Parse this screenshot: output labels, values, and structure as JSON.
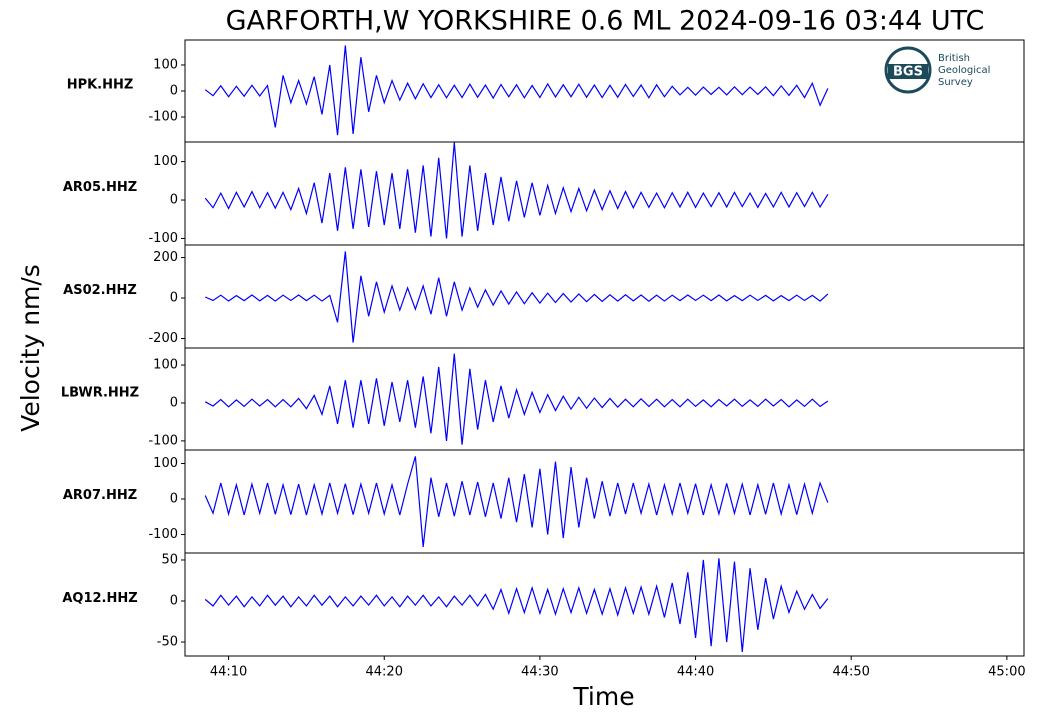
{
  "figure": {
    "title": "GARFORTH,W YORKSHIRE 0.6 ML   2024-09-16 03:44 UTC",
    "xlabel": "Time",
    "ylabel": "Velocity nm/s",
    "logo": {
      "abbr": "BGS",
      "lines": [
        "British",
        "Geological",
        "Survey"
      ]
    }
  },
  "chart_data": [
    {
      "type": "line",
      "x": [
        2648.5,
        2649,
        2649.5,
        2650,
        2650.5,
        2651,
        2651.5,
        2652,
        2652.5,
        2653,
        2653.5,
        2654,
        2654.5,
        2655,
        2655.5,
        2656,
        2656.5,
        2657,
        2657.5,
        2658,
        2658.5,
        2659,
        2659.5,
        2660,
        2660.5,
        2661,
        2661.5,
        2662,
        2662.5,
        2663,
        2663.5,
        2664,
        2664.5,
        2665,
        2665.5,
        2666,
        2666.5,
        2667,
        2667.5,
        2668,
        2668.5,
        2669,
        2669.5,
        2670,
        2670.5,
        2671,
        2671.5,
        2672,
        2672.5,
        2673,
        2673.5,
        2674,
        2674.5,
        2675,
        2675.5,
        2676,
        2676.5,
        2677,
        2677.5,
        2678,
        2678.5,
        2679,
        2679.5,
        2680,
        2680.5,
        2681,
        2681.5,
        2682,
        2682.5,
        2683,
        2683.5,
        2684,
        2684.5,
        2685,
        2685.5,
        2686,
        2686.5,
        2687,
        2687.5,
        2688,
        2688.5
      ],
      "series": [
        {
          "name": "HPK.HHZ",
          "color": "#0000ff",
          "values": [
            5,
            -18,
            20,
            -22,
            18,
            -20,
            22,
            -19,
            21,
            -140,
            60,
            -45,
            40,
            -50,
            55,
            -90,
            100,
            -170,
            175,
            -165,
            130,
            -80,
            60,
            -45,
            40,
            -35,
            30,
            -30,
            28,
            -25,
            24,
            -26,
            22,
            -25,
            26,
            -24,
            23,
            -27,
            25,
            -22,
            24,
            -26,
            21,
            -25,
            27,
            -23,
            24,
            -22,
            26,
            -24,
            23,
            -25,
            22,
            -24,
            25,
            -21,
            23,
            -26,
            24,
            -22,
            18,
            -15,
            14,
            -16,
            15,
            -13,
            14,
            -15,
            16,
            -14,
            15,
            -13,
            16,
            -18,
            20,
            -17,
            22,
            -25,
            30,
            -55,
            10
          ]
        }
      ],
      "xlim": [
        2647.2,
        2701.1
      ],
      "ylim": [
        -196,
        196
      ],
      "yticks": [
        -100,
        0,
        100
      ]
    },
    {
      "type": "line",
      "x": [
        2648.5,
        2649,
        2649.5,
        2650,
        2650.5,
        2651,
        2651.5,
        2652,
        2652.5,
        2653,
        2653.5,
        2654,
        2654.5,
        2655,
        2655.5,
        2656,
        2656.5,
        2657,
        2657.5,
        2658,
        2658.5,
        2659,
        2659.5,
        2660,
        2660.5,
        2661,
        2661.5,
        2662,
        2662.5,
        2663,
        2663.5,
        2664,
        2664.5,
        2665,
        2665.5,
        2666,
        2666.5,
        2667,
        2667.5,
        2668,
        2668.5,
        2669,
        2669.5,
        2670,
        2670.5,
        2671,
        2671.5,
        2672,
        2672.5,
        2673,
        2673.5,
        2674,
        2674.5,
        2675,
        2675.5,
        2676,
        2676.5,
        2677,
        2677.5,
        2678,
        2678.5,
        2679,
        2679.5,
        2680,
        2680.5,
        2681,
        2681.5,
        2682,
        2682.5,
        2683,
        2683.5,
        2684,
        2684.5,
        2685,
        2685.5,
        2686,
        2686.5,
        2687,
        2687.5,
        2688,
        2688.5
      ],
      "series": [
        {
          "name": "AR05.HHZ",
          "color": "#0000ff",
          "values": [
            5,
            -20,
            18,
            -22,
            20,
            -18,
            22,
            -20,
            19,
            -21,
            20,
            -25,
            30,
            -35,
            45,
            -60,
            70,
            -80,
            85,
            -75,
            80,
            -70,
            75,
            -65,
            70,
            -75,
            80,
            -85,
            90,
            -95,
            110,
            -100,
            150,
            -95,
            90,
            -80,
            70,
            -65,
            60,
            -55,
            50,
            -45,
            45,
            -40,
            38,
            -35,
            32,
            -30,
            30,
            -28,
            26,
            -25,
            24,
            -22,
            22,
            -20,
            20,
            -19,
            18,
            -20,
            19,
            -18,
            20,
            -19,
            18,
            -17,
            19,
            -18,
            20,
            -17,
            18,
            -19,
            17,
            -18,
            20,
            -18,
            19,
            -17,
            20,
            -18,
            15
          ]
        }
      ],
      "xlim": [
        2647.2,
        2701.1
      ],
      "ylim": [
        -117,
        151
      ],
      "yticks": [
        -100,
        0,
        100
      ]
    },
    {
      "type": "line",
      "x": [
        2648.5,
        2649,
        2649.5,
        2650,
        2650.5,
        2651,
        2651.5,
        2652,
        2652.5,
        2653,
        2653.5,
        2654,
        2654.5,
        2655,
        2655.5,
        2656,
        2656.5,
        2657,
        2657.5,
        2658,
        2658.5,
        2659,
        2659.5,
        2660,
        2660.5,
        2661,
        2661.5,
        2662,
        2662.5,
        2663,
        2663.5,
        2664,
        2664.5,
        2665,
        2665.5,
        2666,
        2666.5,
        2667,
        2667.5,
        2668,
        2668.5,
        2669,
        2669.5,
        2670,
        2670.5,
        2671,
        2671.5,
        2672,
        2672.5,
        2673,
        2673.5,
        2674,
        2674.5,
        2675,
        2675.5,
        2676,
        2676.5,
        2677,
        2677.5,
        2678,
        2678.5,
        2679,
        2679.5,
        2680,
        2680.5,
        2681,
        2681.5,
        2682,
        2682.5,
        2683,
        2683.5,
        2684,
        2684.5,
        2685,
        2685.5,
        2686,
        2686.5,
        2687,
        2687.5,
        2688,
        2688.5
      ],
      "series": [
        {
          "name": "AS02.HHZ",
          "color": "#0000ff",
          "values": [
            5,
            -12,
            14,
            -15,
            12,
            -13,
            15,
            -14,
            13,
            -15,
            14,
            -12,
            15,
            -13,
            14,
            -15,
            13,
            -120,
            230,
            -220,
            110,
            -90,
            80,
            -70,
            60,
            -60,
            50,
            -55,
            60,
            -80,
            100,
            -90,
            80,
            -60,
            50,
            -45,
            40,
            -35,
            35,
            -30,
            30,
            -28,
            26,
            -25,
            24,
            -22,
            22,
            -20,
            20,
            -18,
            18,
            -17,
            16,
            -15,
            16,
            -14,
            15,
            -16,
            14,
            -15,
            14,
            -13,
            15,
            -12,
            14,
            -13,
            15,
            -14,
            12,
            -13,
            14,
            -12,
            13,
            -14,
            12,
            -13,
            14,
            -12,
            13,
            -15,
            20
          ]
        }
      ],
      "xlim": [
        2647.2,
        2701.1
      ],
      "ylim": [
        -247,
        262
      ],
      "yticks": [
        -200,
        0,
        200
      ]
    },
    {
      "type": "line",
      "x": [
        2648.5,
        2649,
        2649.5,
        2650,
        2650.5,
        2651,
        2651.5,
        2652,
        2652.5,
        2653,
        2653.5,
        2654,
        2654.5,
        2655,
        2655.5,
        2656,
        2656.5,
        2657,
        2657.5,
        2658,
        2658.5,
        2659,
        2659.5,
        2660,
        2660.5,
        2661,
        2661.5,
        2662,
        2662.5,
        2663,
        2663.5,
        2664,
        2664.5,
        2665,
        2665.5,
        2666,
        2666.5,
        2667,
        2667.5,
        2668,
        2668.5,
        2669,
        2669.5,
        2670,
        2670.5,
        2671,
        2671.5,
        2672,
        2672.5,
        2673,
        2673.5,
        2674,
        2674.5,
        2675,
        2675.5,
        2676,
        2676.5,
        2677,
        2677.5,
        2678,
        2678.5,
        2679,
        2679.5,
        2680,
        2680.5,
        2681,
        2681.5,
        2682,
        2682.5,
        2683,
        2683.5,
        2684,
        2684.5,
        2685,
        2685.5,
        2686,
        2686.5,
        2687,
        2687.5,
        2688,
        2688.5
      ],
      "series": [
        {
          "name": "LBWR.HHZ",
          "color": "#0000ff",
          "values": [
            3,
            -8,
            9,
            -10,
            8,
            -9,
            10,
            -8,
            9,
            -10,
            9,
            -10,
            12,
            -15,
            20,
            -30,
            45,
            -55,
            60,
            -65,
            60,
            -55,
            65,
            -60,
            55,
            -50,
            60,
            -65,
            70,
            -80,
            95,
            -100,
            130,
            -110,
            90,
            -70,
            60,
            -50,
            45,
            -40,
            35,
            -30,
            28,
            -25,
            22,
            -20,
            18,
            -16,
            15,
            -14,
            13,
            -12,
            12,
            -11,
            10,
            -10,
            11,
            -9,
            10,
            -10,
            9,
            -10,
            10,
            -9,
            8,
            -10,
            9,
            -8,
            10,
            -9,
            8,
            -9,
            10,
            -8,
            9,
            -10,
            8,
            -9,
            10,
            -9,
            5
          ]
        }
      ],
      "xlim": [
        2647.2,
        2701.1
      ],
      "ylim": [
        -124,
        145
      ],
      "yticks": [
        -100,
        0,
        100
      ]
    },
    {
      "type": "line",
      "x": [
        2648.5,
        2649,
        2649.5,
        2650,
        2650.5,
        2651,
        2651.5,
        2652,
        2652.5,
        2653,
        2653.5,
        2654,
        2654.5,
        2655,
        2655.5,
        2656,
        2656.5,
        2657,
        2657.5,
        2658,
        2658.5,
        2659,
        2659.5,
        2660,
        2660.5,
        2661,
        2661.5,
        2662,
        2662.5,
        2663,
        2663.5,
        2664,
        2664.5,
        2665,
        2665.5,
        2666,
        2666.5,
        2667,
        2667.5,
        2668,
        2668.5,
        2669,
        2669.5,
        2670,
        2670.5,
        2671,
        2671.5,
        2672,
        2672.5,
        2673,
        2673.5,
        2674,
        2674.5,
        2675,
        2675.5,
        2676,
        2676.5,
        2677,
        2677.5,
        2678,
        2678.5,
        2679,
        2679.5,
        2680,
        2680.5,
        2681,
        2681.5,
        2682,
        2682.5,
        2683,
        2683.5,
        2684,
        2684.5,
        2685,
        2685.5,
        2686,
        2686.5,
        2687,
        2687.5,
        2688,
        2688.5
      ],
      "series": [
        {
          "name": "AR07.HHZ",
          "color": "#0000ff",
          "values": [
            10,
            -40,
            45,
            -42,
            40,
            -45,
            42,
            -40,
            45,
            -43,
            40,
            -44,
            42,
            -45,
            40,
            -42,
            45,
            -40,
            43,
            -44,
            42,
            -40,
            45,
            -42,
            40,
            -45,
            42,
            120,
            -135,
            60,
            -50,
            45,
            -48,
            50,
            -45,
            48,
            -50,
            45,
            -55,
            60,
            -65,
            70,
            -80,
            85,
            -100,
            105,
            -110,
            90,
            -80,
            60,
            -55,
            50,
            -48,
            45,
            -42,
            45,
            -40,
            42,
            -45,
            40,
            -42,
            45,
            -40,
            43,
            -45,
            40,
            -42,
            44,
            -40,
            42,
            -45,
            40,
            -43,
            45,
            -42,
            40,
            -44,
            42,
            -40,
            45,
            -10
          ]
        }
      ],
      "xlim": [
        2647.2,
        2701.1
      ],
      "ylim": [
        -152,
        138
      ],
      "yticks": [
        -100,
        0,
        100
      ]
    },
    {
      "type": "line",
      "x": [
        2648.5,
        2649,
        2649.5,
        2650,
        2650.5,
        2651,
        2651.5,
        2652,
        2652.5,
        2653,
        2653.5,
        2654,
        2654.5,
        2655,
        2655.5,
        2656,
        2656.5,
        2657,
        2657.5,
        2658,
        2658.5,
        2659,
        2659.5,
        2660,
        2660.5,
        2661,
        2661.5,
        2662,
        2662.5,
        2663,
        2663.5,
        2664,
        2664.5,
        2665,
        2665.5,
        2666,
        2666.5,
        2667,
        2667.5,
        2668,
        2668.5,
        2669,
        2669.5,
        2670,
        2670.5,
        2671,
        2671.5,
        2672,
        2672.5,
        2673,
        2673.5,
        2674,
        2674.5,
        2675,
        2675.5,
        2676,
        2676.5,
        2677,
        2677.5,
        2678,
        2678.5,
        2679,
        2679.5,
        2680,
        2680.5,
        2681,
        2681.5,
        2682,
        2682.5,
        2683,
        2683.5,
        2684,
        2684.5,
        2685,
        2685.5,
        2686,
        2686.5,
        2687,
        2687.5,
        2688,
        2688.5
      ],
      "series": [
        {
          "name": "AQ12.HHZ",
          "color": "#0000ff",
          "values": [
            2,
            -6,
            7,
            -5,
            6,
            -7,
            5,
            -6,
            7,
            -5,
            6,
            -7,
            5,
            -6,
            7,
            -5,
            6,
            -7,
            5,
            -6,
            6,
            -5,
            7,
            -6,
            5,
            -7,
            6,
            -5,
            7,
            -6,
            5,
            -7,
            6,
            -5,
            7,
            -6,
            8,
            -10,
            14,
            -15,
            15,
            -14,
            16,
            -15,
            14,
            -16,
            15,
            -14,
            16,
            -15,
            14,
            -16,
            15,
            -17,
            16,
            -15,
            17,
            -16,
            18,
            -20,
            22,
            -28,
            35,
            -45,
            50,
            -55,
            52,
            -50,
            48,
            -62,
            40,
            -35,
            28,
            -22,
            18,
            -14,
            12,
            -10,
            8,
            -9,
            3
          ]
        }
      ],
      "xlim": [
        2647.2,
        2701.1
      ],
      "ylim": [
        -67,
        58.5
      ],
      "yticks": [
        -50,
        0,
        50
      ],
      "xticks": [
        {
          "value": 2650,
          "label": "44:10"
        },
        {
          "value": 2660,
          "label": "44:20"
        },
        {
          "value": 2670,
          "label": "44:30"
        },
        {
          "value": 2680,
          "label": "44:40"
        },
        {
          "value": 2690,
          "label": "44:50"
        },
        {
          "value": 2700,
          "label": "45:00"
        }
      ]
    }
  ]
}
